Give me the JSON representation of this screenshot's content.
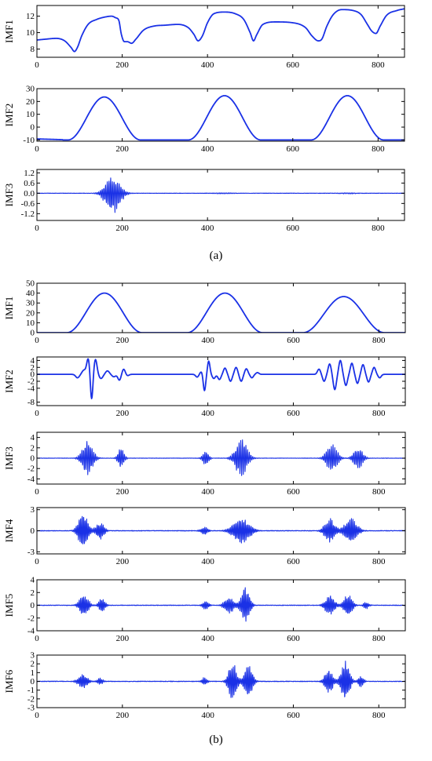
{
  "captions": {
    "a": "(a)",
    "b": "(b)"
  },
  "style": {
    "line_color": "#1a31e6",
    "axis_color": "#000000",
    "background": "#ffffff"
  },
  "chart_data": [
    {
      "panel": "(a)",
      "type": "line",
      "title": "",
      "xlabel": "",
      "ylabel": "IMF1",
      "xlim": [
        0,
        862
      ],
      "ylim": [
        7,
        13.3
      ],
      "xticks": [
        0,
        200,
        400,
        600,
        800
      ],
      "xtick_labels": [
        "0",
        "200",
        "400",
        "600",
        "800"
      ],
      "yticks": [
        8,
        10,
        12
      ],
      "ytick_labels": [
        "8",
        "10",
        "12"
      ],
      "series": [
        {
          "kind": "smooth",
          "x": [
            0,
            20,
            45,
            65,
            80,
            88,
            95,
            105,
            120,
            140,
            160,
            175,
            185,
            192,
            198,
            205,
            212,
            222,
            232,
            250,
            275,
            300,
            330,
            355,
            368,
            378,
            388,
            400,
            415,
            440,
            465,
            485,
            500,
            508,
            515,
            530,
            560,
            600,
            630,
            645,
            660,
            668,
            680,
            695,
            715,
            740,
            760,
            775,
            785,
            795,
            805,
            820,
            845,
            862
          ],
          "y": [
            9.1,
            9.2,
            9.3,
            9.0,
            8.2,
            7.7,
            8.2,
            9.6,
            11.0,
            11.6,
            11.9,
            12.0,
            11.8,
            11.5,
            9.8,
            8.9,
            8.9,
            8.7,
            9.2,
            10.3,
            10.8,
            10.9,
            11.0,
            10.6,
            9.8,
            9.0,
            9.6,
            11.2,
            12.3,
            12.5,
            12.3,
            11.6,
            10.0,
            9.0,
            9.7,
            11.0,
            11.3,
            11.2,
            10.6,
            9.6,
            9.0,
            9.2,
            10.8,
            12.2,
            12.8,
            12.7,
            12.2,
            11.0,
            10.2,
            9.9,
            10.8,
            12.1,
            12.7,
            12.9
          ]
        }
      ]
    },
    {
      "panel": "(a)",
      "type": "line",
      "title": "",
      "xlabel": "",
      "ylabel": "IMF2",
      "xlim": [
        0,
        862
      ],
      "ylim": [
        -11,
        30
      ],
      "xticks": [
        0,
        200,
        400,
        600,
        800
      ],
      "xtick_labels": [
        "0",
        "200",
        "400",
        "600",
        "800"
      ],
      "yticks": [
        -10,
        0,
        10,
        20,
        30
      ],
      "ytick_labels": [
        "-10",
        "0",
        "10",
        "20",
        "30"
      ],
      "series": [
        {
          "kind": "bumps",
          "baseline": -10,
          "tail": [
            0,
            -9.2,
            60,
            -9.8
          ],
          "bumps": [
            {
              "center": 158,
              "half_width": 85,
              "height": 33.5
            },
            {
              "center": 440,
              "half_width": 85,
              "height": 34.5
            },
            {
              "center": 728,
              "half_width": 85,
              "height": 34.5
            }
          ]
        }
      ]
    },
    {
      "panel": "(a)",
      "type": "line",
      "title": "",
      "xlabel": "",
      "ylabel": "IMF3",
      "xlim": [
        0,
        862
      ],
      "ylim": [
        -1.6,
        1.4
      ],
      "xticks": [
        0,
        200,
        400,
        600,
        800
      ],
      "xtick_labels": [
        "0",
        "200",
        "400",
        "600",
        "800"
      ],
      "yticks": [
        -1.2,
        -0.6,
        0.0,
        0.6,
        1.2
      ],
      "ytick_labels": [
        "-1.2",
        "-0.6",
        "0.0",
        "0.6",
        "1.2"
      ],
      "series": [
        {
          "kind": "oscillation",
          "amp_pos": 1.0,
          "amp_neg": 1.25,
          "period": 4,
          "noise": 0.01,
          "bursts": [
            {
              "center": 178,
              "width": 22,
              "scale": 1.0
            },
            {
              "center": 440,
              "width": 30,
              "scale": 0.03
            },
            {
              "center": 730,
              "width": 30,
              "scale": 0.03
            }
          ]
        }
      ]
    },
    {
      "panel": "(b)",
      "type": "line",
      "title": "",
      "xlabel": "",
      "ylabel": "IMF1",
      "xlim": [
        0,
        862
      ],
      "ylim": [
        0,
        50
      ],
      "xticks": [
        0,
        200,
        400,
        600,
        800
      ],
      "xtick_labels": [
        "0",
        "200",
        "400",
        "600",
        "800"
      ],
      "yticks": [
        0,
        10,
        20,
        30,
        40,
        50
      ],
      "ytick_labels": [
        "0",
        "10",
        "20",
        "30",
        "40",
        "50"
      ],
      "series": [
        {
          "kind": "bumps",
          "baseline": 0,
          "bumps": [
            {
              "center": 158,
              "half_width": 88,
              "height": 40
            },
            {
              "center": 440,
              "half_width": 88,
              "height": 40
            },
            {
              "center": 718,
              "half_width": 95,
              "height": 36.5
            }
          ]
        }
      ]
    },
    {
      "panel": "(b)",
      "type": "line",
      "title": "",
      "xlabel": "",
      "ylabel": "IMF2",
      "xlim": [
        0,
        862
      ],
      "ylim": [
        -9,
        5
      ],
      "xticks": [
        0,
        200,
        400,
        600,
        800
      ],
      "xtick_labels": [
        "0",
        "200",
        "400",
        "600",
        "800"
      ],
      "yticks": [
        -8,
        -4,
        -2,
        0,
        2,
        4
      ],
      "ytick_labels": [
        "-8",
        "-4",
        "-2",
        "0",
        "2",
        "4"
      ],
      "series": [
        {
          "kind": "wavelets",
          "wavelets": [
            {
              "center": 95,
              "amp": -1.0,
              "width": 6
            },
            {
              "center": 110,
              "amp": 1.2,
              "width": 6
            },
            {
              "center": 120,
              "amp": 4.5,
              "width": 5
            },
            {
              "center": 128,
              "amp": -7.5,
              "width": 4
            },
            {
              "center": 137,
              "amp": 4.3,
              "width": 5
            },
            {
              "center": 150,
              "amp": -1.2,
              "width": 6
            },
            {
              "center": 165,
              "amp": 1.0,
              "width": 6
            },
            {
              "center": 180,
              "amp": -0.7,
              "width": 6
            },
            {
              "center": 193,
              "amp": -1.7,
              "width": 5
            },
            {
              "center": 203,
              "amp": 1.5,
              "width": 5
            },
            {
              "center": 212,
              "amp": -0.4,
              "width": 5
            },
            {
              "center": 375,
              "amp": -0.8,
              "width": 5
            },
            {
              "center": 385,
              "amp": 0.8,
              "width": 5
            },
            {
              "center": 392,
              "amp": -4.8,
              "width": 4
            },
            {
              "center": 402,
              "amp": 3.8,
              "width": 4
            },
            {
              "center": 414,
              "amp": -1.2,
              "width": 5
            },
            {
              "center": 427,
              "amp": -1.5,
              "width": 5
            },
            {
              "center": 440,
              "amp": 1.8,
              "width": 5
            },
            {
              "center": 453,
              "amp": -2.0,
              "width": 5
            },
            {
              "center": 466,
              "amp": 2.0,
              "width": 5
            },
            {
              "center": 478,
              "amp": -2.0,
              "width": 5
            },
            {
              "center": 490,
              "amp": 1.6,
              "width": 5
            },
            {
              "center": 503,
              "amp": -1.0,
              "width": 5
            },
            {
              "center": 516,
              "amp": 0.5,
              "width": 5
            },
            {
              "center": 660,
              "amp": 1.5,
              "width": 5
            },
            {
              "center": 672,
              "amp": -2.0,
              "width": 5
            },
            {
              "center": 685,
              "amp": 3.0,
              "width": 5
            },
            {
              "center": 697,
              "amp": -4.4,
              "width": 5
            },
            {
              "center": 710,
              "amp": 4.0,
              "width": 5
            },
            {
              "center": 723,
              "amp": -3.2,
              "width": 5
            },
            {
              "center": 737,
              "amp": 3.2,
              "width": 5
            },
            {
              "center": 750,
              "amp": -2.6,
              "width": 5
            },
            {
              "center": 763,
              "amp": 2.8,
              "width": 5
            },
            {
              "center": 776,
              "amp": -2.2,
              "width": 5
            },
            {
              "center": 789,
              "amp": 2.0,
              "width": 5
            },
            {
              "center": 802,
              "amp": -1.0,
              "width": 5
            }
          ]
        }
      ]
    },
    {
      "panel": "(b)",
      "type": "line",
      "title": "",
      "xlabel": "",
      "ylabel": "IMF3",
      "xlim": [
        0,
        862
      ],
      "ylim": [
        -5,
        5
      ],
      "xticks": [
        0,
        200,
        400,
        600,
        800
      ],
      "xtick_labels": [
        "0",
        "200",
        "400",
        "600",
        "800"
      ],
      "yticks": [
        -4,
        -2,
        0,
        2,
        4
      ],
      "ytick_labels": [
        "-4",
        "-2",
        "0",
        "2",
        "4"
      ],
      "series": [
        {
          "kind": "oscillation",
          "amp_pos": 3.5,
          "amp_neg": 3.3,
          "period": 4,
          "noise": 0.03,
          "bursts": [
            {
              "center": 118,
              "width": 16,
              "scale": 1.0
            },
            {
              "center": 197,
              "width": 9,
              "scale": 0.6
            },
            {
              "center": 395,
              "width": 9,
              "scale": 0.45
            },
            {
              "center": 478,
              "width": 18,
              "scale": 1.05
            },
            {
              "center": 690,
              "width": 16,
              "scale": 0.8
            },
            {
              "center": 752,
              "width": 14,
              "scale": 0.6
            }
          ]
        }
      ]
    },
    {
      "panel": "(b)",
      "type": "line",
      "title": "",
      "xlabel": "",
      "ylabel": "IMF4",
      "xlim": [
        0,
        862
      ],
      "ylim": [
        -3.3,
        3.3
      ],
      "xticks": [
        0,
        200,
        400,
        600,
        800
      ],
      "xtick_labels": [
        "0",
        "200",
        "400",
        "600",
        "800"
      ],
      "yticks": [
        -3,
        0,
        3
      ],
      "ytick_labels": [
        "-3",
        "0",
        "3"
      ],
      "series": [
        {
          "kind": "oscillation",
          "amp_pos": 2.5,
          "amp_neg": 2.5,
          "period": 3.5,
          "noise": 0.04,
          "bursts": [
            {
              "center": 108,
              "width": 14,
              "scale": 1.05
            },
            {
              "center": 148,
              "width": 12,
              "scale": 0.5
            },
            {
              "center": 392,
              "width": 10,
              "scale": 0.25
            },
            {
              "center": 478,
              "width": 24,
              "scale": 0.75
            },
            {
              "center": 685,
              "width": 15,
              "scale": 0.75
            },
            {
              "center": 735,
              "width": 18,
              "scale": 0.75
            }
          ]
        }
      ]
    },
    {
      "panel": "(b)",
      "type": "line",
      "title": "",
      "xlabel": "",
      "ylabel": "IMF5",
      "xlim": [
        0,
        862
      ],
      "ylim": [
        -4,
        4
      ],
      "xticks": [
        0,
        200,
        400,
        600,
        800
      ],
      "xtick_labels": [
        "0",
        "200",
        "400",
        "600",
        "800"
      ],
      "yticks": [
        -4,
        -2,
        0,
        2,
        4
      ],
      "ytick_labels": [
        "-4",
        "-2",
        "0",
        "2",
        "4"
      ],
      "series": [
        {
          "kind": "oscillation",
          "amp_pos": 2.9,
          "amp_neg": 2.9,
          "period": 3.5,
          "noise": 0.04,
          "bursts": [
            {
              "center": 110,
              "width": 13,
              "scale": 0.6
            },
            {
              "center": 152,
              "width": 9,
              "scale": 0.4
            },
            {
              "center": 395,
              "width": 9,
              "scale": 0.25
            },
            {
              "center": 488,
              "width": 12,
              "scale": 1.0
            },
            {
              "center": 450,
              "width": 14,
              "scale": 0.45
            },
            {
              "center": 685,
              "width": 14,
              "scale": 0.55
            },
            {
              "center": 728,
              "width": 12,
              "scale": 0.65
            },
            {
              "center": 770,
              "width": 8,
              "scale": 0.2
            }
          ]
        }
      ]
    },
    {
      "panel": "(b)",
      "type": "line",
      "title": "",
      "xlabel": "",
      "ylabel": "IMF6",
      "xlim": [
        0,
        862
      ],
      "ylim": [
        -3,
        3
      ],
      "xticks": [
        0,
        200,
        400,
        600,
        800
      ],
      "xtick_labels": [
        "0",
        "200",
        "400",
        "600",
        "800"
      ],
      "yticks": [
        -3,
        -2,
        -1,
        0,
        1,
        2,
        3
      ],
      "ytick_labels": [
        "-3",
        "-2",
        "-1",
        "0",
        "1",
        "2",
        "3"
      ],
      "series": [
        {
          "kind": "oscillation",
          "amp_pos": 2.6,
          "amp_neg": 2.6,
          "period": 3.5,
          "noise": 0.03,
          "bursts": [
            {
              "center": 108,
              "width": 14,
              "scale": 0.33
            },
            {
              "center": 148,
              "width": 8,
              "scale": 0.15
            },
            {
              "center": 392,
              "width": 8,
              "scale": 0.18
            },
            {
              "center": 458,
              "width": 12,
              "scale": 0.85
            },
            {
              "center": 495,
              "width": 12,
              "scale": 0.75
            },
            {
              "center": 683,
              "width": 12,
              "scale": 0.55
            },
            {
              "center": 722,
              "width": 12,
              "scale": 0.95
            },
            {
              "center": 758,
              "width": 8,
              "scale": 0.25
            }
          ]
        }
      ]
    }
  ]
}
